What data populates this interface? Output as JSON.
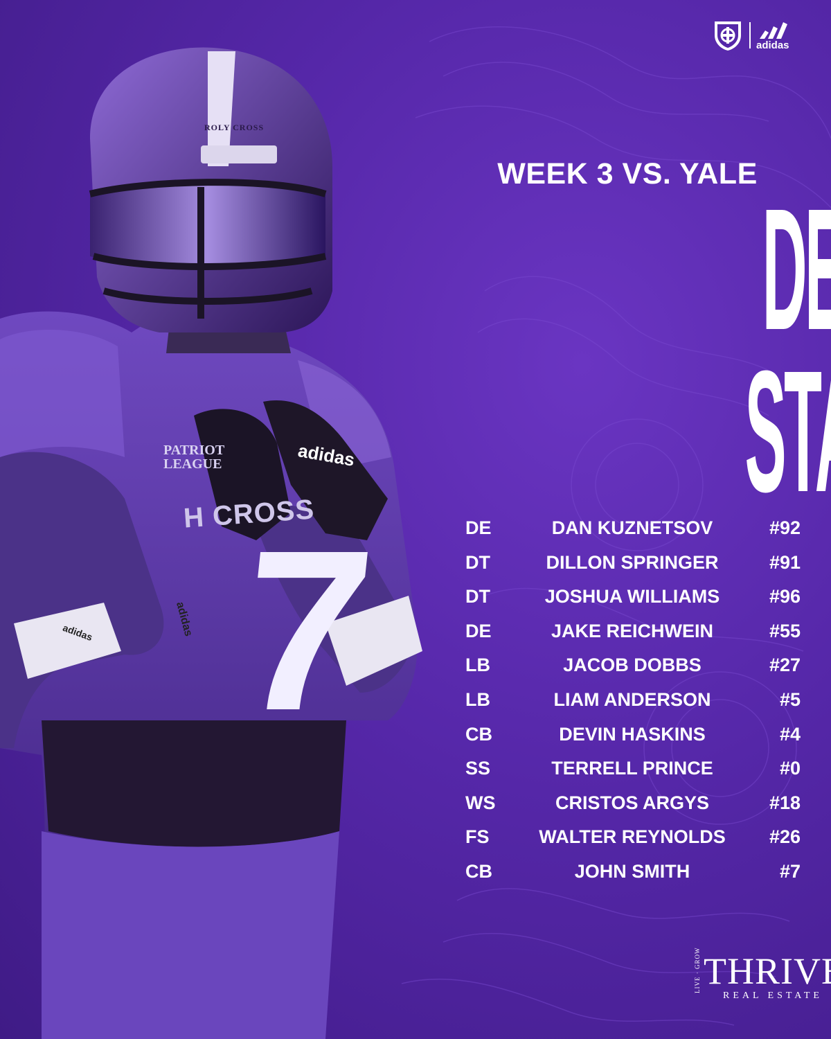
{
  "brand": {
    "adidas": "adidas"
  },
  "photo": {
    "jersey_number": "7",
    "jersey_school": "H   CROSS",
    "glove_brand": "adidas",
    "visor_text": "ROLY CROSS",
    "wristband_1": "adidas",
    "wristband_2": "adidas",
    "league": "PATRIOT\nLEAGUE"
  },
  "header": {
    "subtitle": "WEEK 3 VS. YALE",
    "title_line1": "DEFENSIVE",
    "title_line2": "STARTERS"
  },
  "roster": [
    {
      "pos": "DE",
      "name": "DAN KUZNETSOV",
      "number": "#92"
    },
    {
      "pos": "DT",
      "name": "DILLON SPRINGER",
      "number": "#91"
    },
    {
      "pos": "DT",
      "name": "JOSHUA WILLIAMS",
      "number": "#96"
    },
    {
      "pos": "DE",
      "name": "JAKE REICHWEIN",
      "number": "#55"
    },
    {
      "pos": "LB",
      "name": "JACOB DOBBS",
      "number": "#27"
    },
    {
      "pos": "LB",
      "name": "LIAM ANDERSON",
      "number": "#5"
    },
    {
      "pos": "CB",
      "name": "DEVIN HASKINS",
      "number": "#4"
    },
    {
      "pos": "SS",
      "name": "TERRELL PRINCE",
      "number": "#0"
    },
    {
      "pos": "WS",
      "name": "CRISTOS ARGYS",
      "number": "#18"
    },
    {
      "pos": "FS",
      "name": "WALTER REYNOLDS",
      "number": "#26"
    },
    {
      "pos": "CB",
      "name": "JOHN SMITH",
      "number": "#7"
    }
  ],
  "sponsor": {
    "tagline": "LIVE · GROW",
    "name": "THRIVE",
    "sub": "REAL ESTATE"
  },
  "colors": {
    "background": "#5527a8",
    "text": "#ffffff"
  }
}
